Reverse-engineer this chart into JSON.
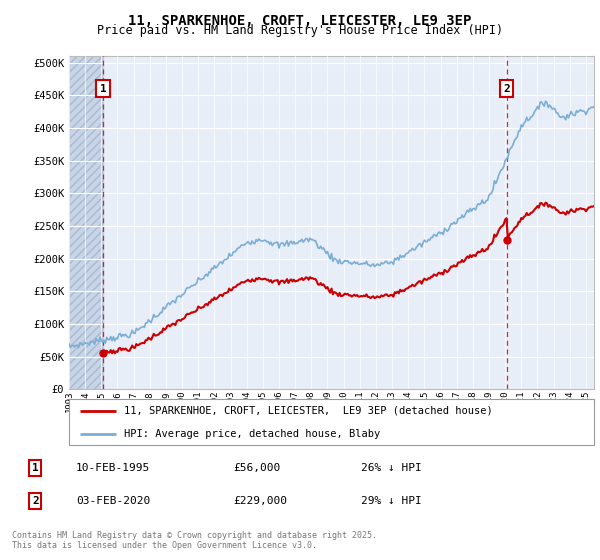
{
  "title": "11, SPARKENHOE, CROFT, LEICESTER, LE9 3EP",
  "subtitle": "Price paid vs. HM Land Registry's House Price Index (HPI)",
  "legend_line1": "11, SPARKENHOE, CROFT, LEICESTER,  LE9 3EP (detached house)",
  "legend_line2": "HPI: Average price, detached house, Blaby",
  "annotation1_date": "10-FEB-1995",
  "annotation1_price": "£56,000",
  "annotation1_hpi": "26% ↓ HPI",
  "annotation2_date": "03-FEB-2020",
  "annotation2_price": "£229,000",
  "annotation2_hpi": "29% ↓ HPI",
  "copyright": "Contains HM Land Registry data © Crown copyright and database right 2025.\nThis data is licensed under the Open Government Licence v3.0.",
  "hpi_color": "#7aaed6",
  "price_color": "#cc0000",
  "plot_bg": "#e8eef8",
  "grid_color": "#ffffff",
  "hatch_color": "#c8d4e8",
  "sale1_year": 1995.1,
  "sale1_price": 56000,
  "sale2_year": 2020.09,
  "sale2_price": 229000,
  "year_start": 1993,
  "year_end": 2025.5
}
